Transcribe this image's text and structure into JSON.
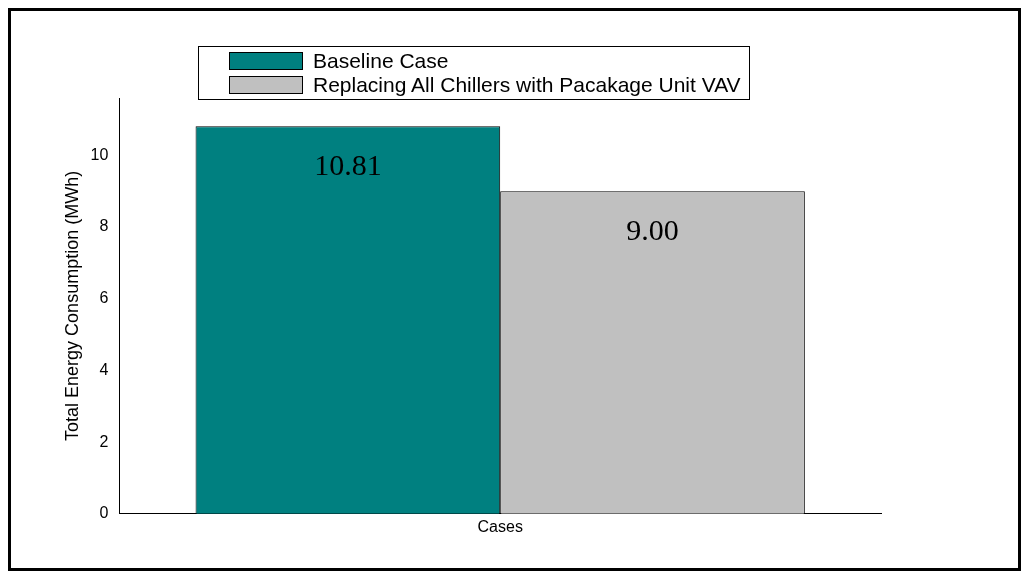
{
  "chart_data": {
    "type": "bar",
    "xlabel": "Cases",
    "ylabel": "Total Energy Consumption (MWh)",
    "categories": [
      null
    ],
    "series": [
      {
        "name": "Baseline Case",
        "color": "#008080",
        "values": [
          10.81
        ],
        "value_labels": [
          "10.81"
        ]
      },
      {
        "name": "Replacing All Chillers with Pacakage Unit VAV",
        "color": "#c0c0c0",
        "values": [
          9.0
        ],
        "value_labels": [
          "9.00"
        ]
      }
    ],
    "ylim": [
      0,
      11.6
    ],
    "yticks": [
      0,
      2,
      4,
      6,
      8,
      10
    ],
    "grid": false,
    "legend": "top"
  }
}
